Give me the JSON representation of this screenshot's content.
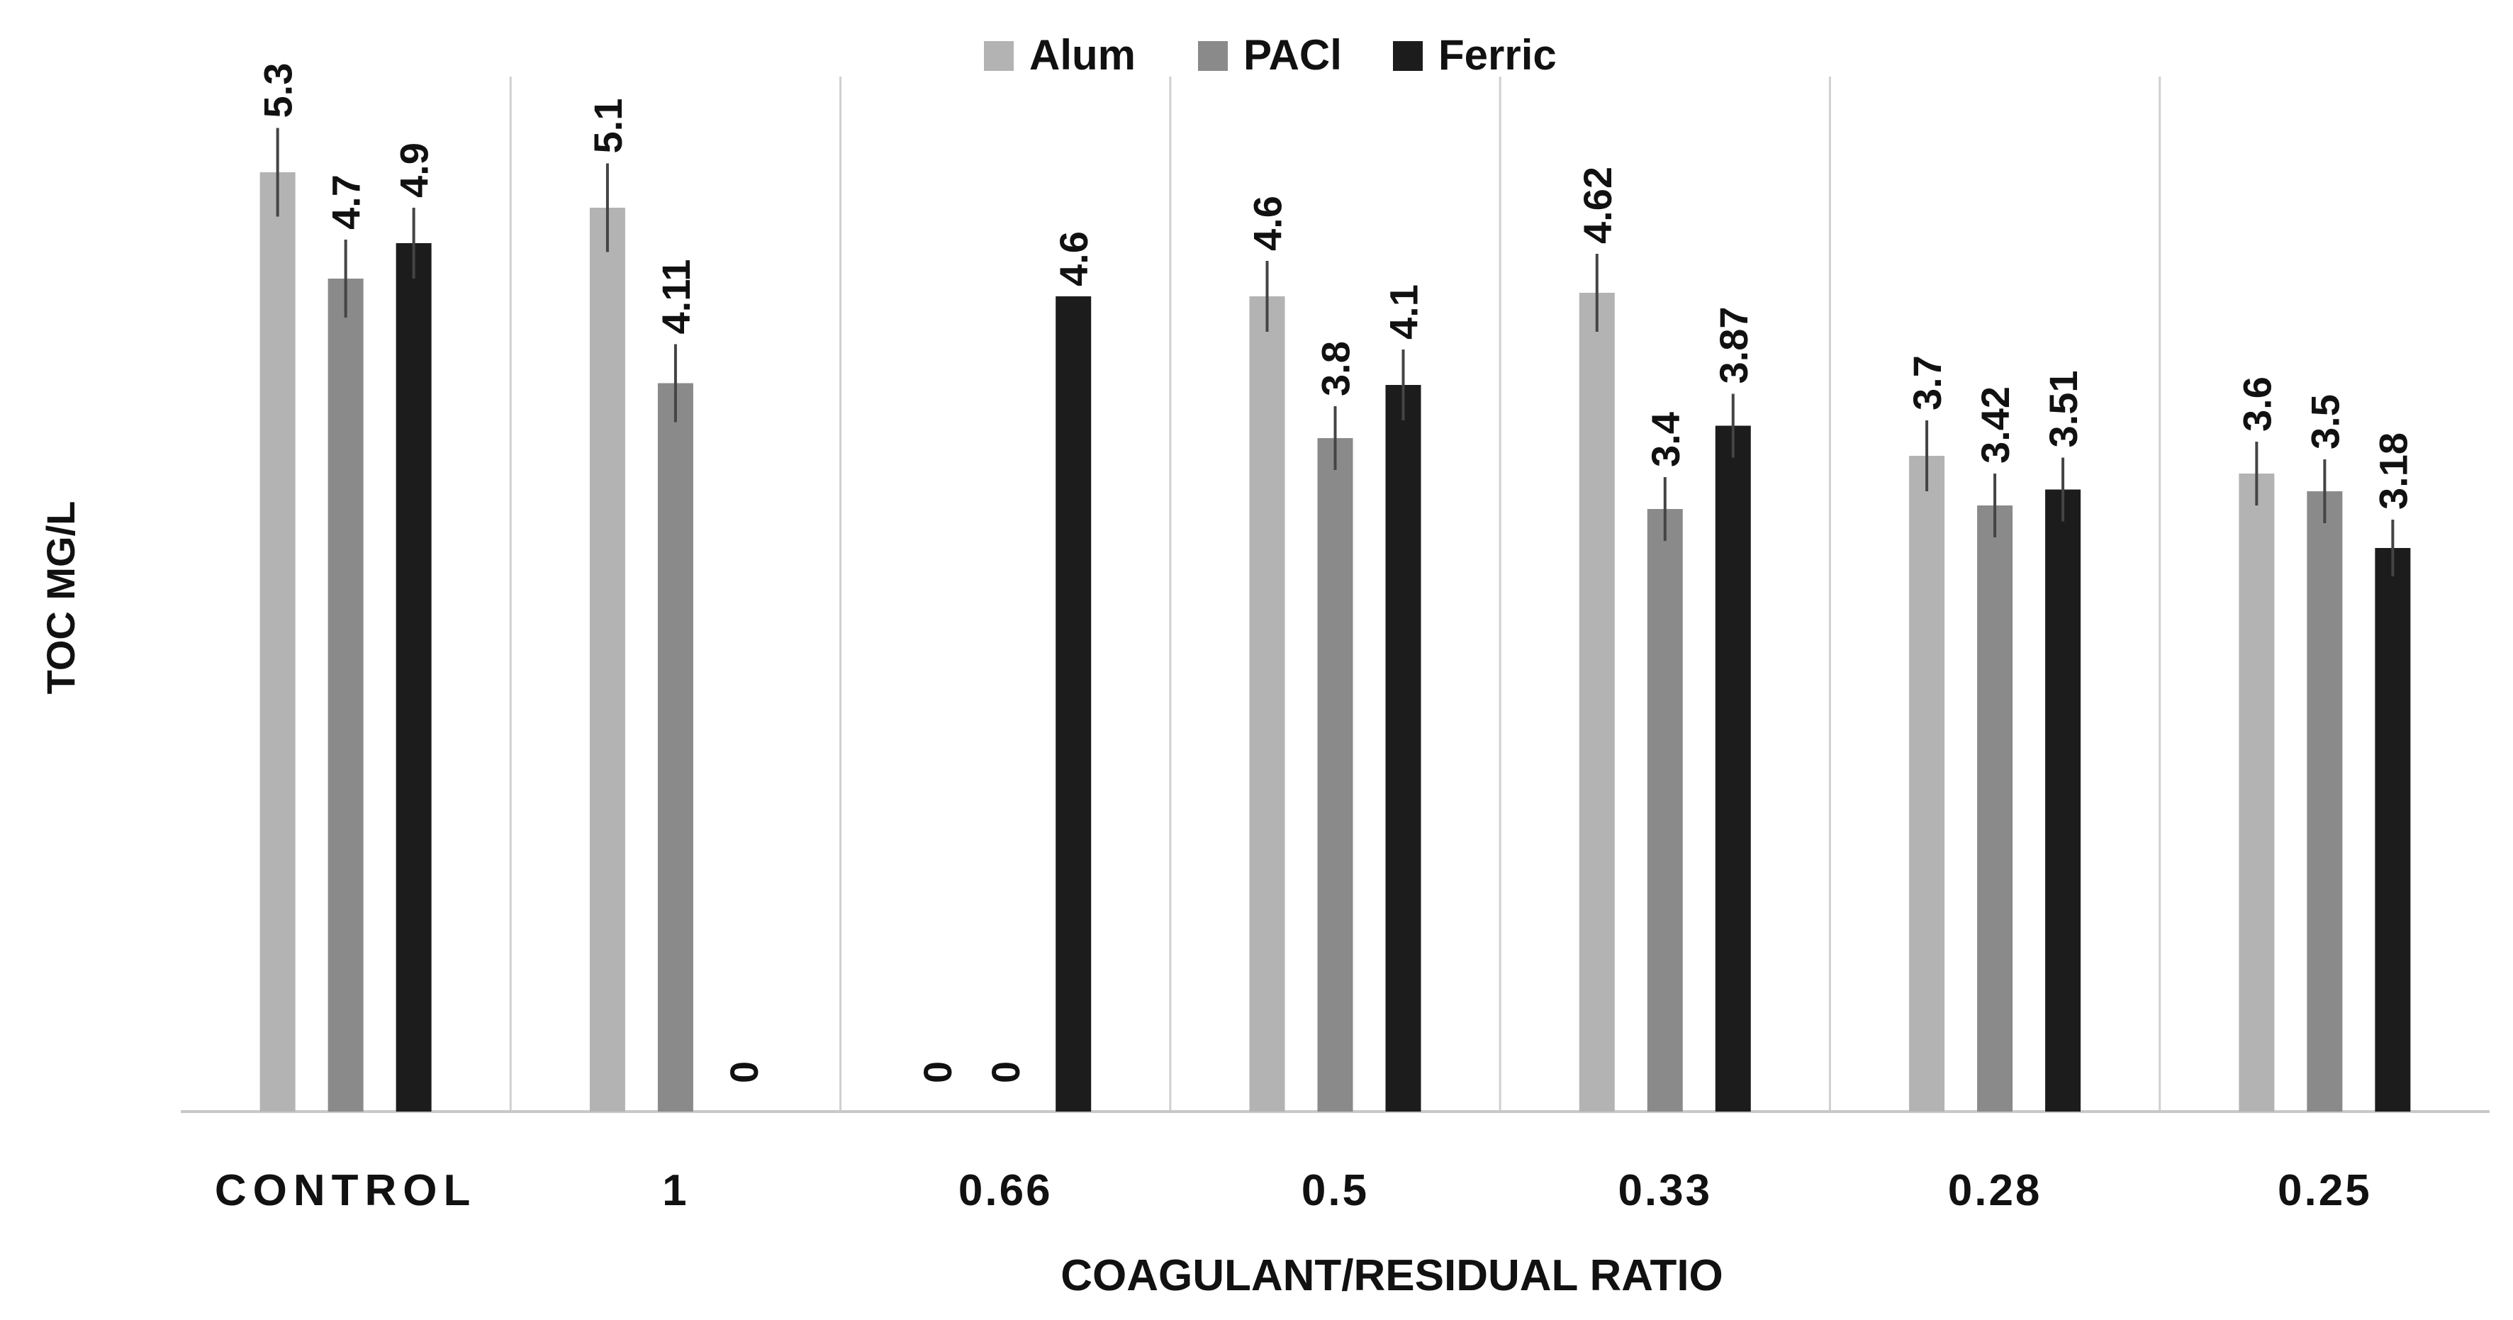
{
  "chart_data": {
    "type": "bar",
    "title": "",
    "xlabel": "COAGULANT/RESIDUAL RATIO",
    "ylabel": "TOC MG/L",
    "categories": [
      "CONTROL",
      "1",
      "0.66",
      "0.5",
      "0.33",
      "0.28",
      "0.25"
    ],
    "series": [
      {
        "name": "Alum",
        "color": "#b3b3b3",
        "values": [
          5.3,
          5.1,
          0,
          4.6,
          4.62,
          3.7,
          3.6
        ],
        "labels": [
          "5.3",
          "5.1",
          "0",
          "4.6",
          "4.62",
          "3.7",
          "3.6"
        ],
        "errors": [
          0.25,
          0.25,
          0,
          0.2,
          0.22,
          0.2,
          0.18
        ]
      },
      {
        "name": "PACl",
        "color": "#8a8a8a",
        "values": [
          4.7,
          4.11,
          0,
          3.8,
          3.4,
          3.42,
          3.5
        ],
        "labels": [
          "4.7",
          "4.11",
          "0",
          "3.8",
          "3.4",
          "3.42",
          "3.5"
        ],
        "errors": [
          0.22,
          0.22,
          0,
          0.18,
          0.18,
          0.18,
          0.18
        ]
      },
      {
        "name": "Ferric",
        "color": "#1c1c1c",
        "values": [
          4.9,
          0,
          4.6,
          4.1,
          3.87,
          3.51,
          3.18
        ],
        "labels": [
          "4.9",
          "0",
          "4.6",
          "4.1",
          "3.87",
          "3.51",
          "3.18"
        ],
        "errors": [
          0.2,
          0,
          0,
          0.2,
          0.18,
          0.18,
          0.16
        ]
      }
    ],
    "ylim": [
      0,
      5.8
    ],
    "grid": false,
    "category_separators": true,
    "legend": "top-center",
    "error_bars": true
  }
}
